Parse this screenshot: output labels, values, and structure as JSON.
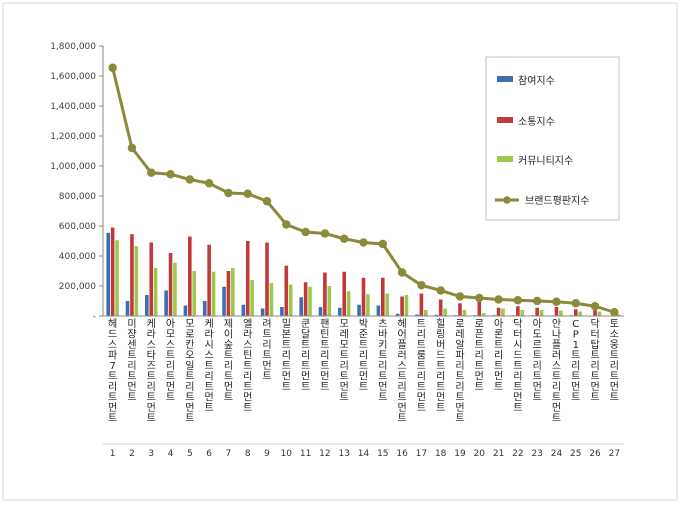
{
  "chart_data": {
    "type": "bar",
    "title": "",
    "xlabel": "",
    "ylabel": "",
    "ylim": [
      0,
      1800000
    ],
    "yticks": [
      "-",
      "200,000",
      "400,000",
      "600,000",
      "800,000",
      "1,000,000",
      "1,200,000",
      "1,400,000",
      "1,600,000",
      "1,800,000"
    ],
    "grid": false,
    "legend_position": "top-right",
    "ranks": [
      "1",
      "2",
      "3",
      "4",
      "5",
      "6",
      "7",
      "8",
      "9",
      "10",
      "11",
      "12",
      "13",
      "14",
      "15",
      "16",
      "17",
      "18",
      "19",
      "20",
      "21",
      "22",
      "23",
      "24",
      "25",
      "26",
      "27"
    ],
    "categories": [
      "헤드스파7트리트먼트",
      "미쟝센트리트먼트",
      "케라스타즈트리트먼트",
      "아모스트리트먼트",
      "모로칸오일트리트먼트",
      "케라시스트리트먼트",
      "제이숲트리트먼트",
      "엘라스틴트리트먼트",
      "려트리트먼트",
      "밀본트리트먼트",
      "쿤달트리트먼트",
      "팬틴트리트먼트",
      "모레모트리트먼트",
      "박준트리트먼트",
      "츠바키트리트먼트",
      "헤어플러스트리트먼트",
      "트리트룸트리트먼트",
      "힐링버드트리트먼트",
      "로레알파리트리트먼트",
      "로픈트리트먼트",
      "아론트리트먼트",
      "닥터시드트리트먼트",
      "아도르트리트먼트",
      "안나플러스트리트먼트",
      "CP1트리트먼트",
      "닥터탑트리트먼트",
      "토소웅트리트먼트"
    ],
    "series": [
      {
        "name": "참여지수",
        "type": "bar",
        "color": "#3c6fb0",
        "values": [
          555000,
          100000,
          140000,
          170000,
          70000,
          100000,
          195000,
          75000,
          50000,
          60000,
          125000,
          60000,
          55000,
          75000,
          70000,
          15000,
          10000,
          8000,
          5000,
          5000,
          5000,
          5000,
          5000,
          4000,
          5000,
          3000,
          3000
        ]
      },
      {
        "name": "소통지수",
        "type": "bar",
        "color": "#c0393b",
        "values": [
          590000,
          545000,
          490000,
          420000,
          530000,
          475000,
          300000,
          500000,
          490000,
          335000,
          225000,
          290000,
          295000,
          255000,
          255000,
          130000,
          150000,
          110000,
          85000,
          95000,
          55000,
          65000,
          55000,
          60000,
          45000,
          40000,
          15000
        ]
      },
      {
        "name": "커뮤니티지수",
        "type": "bar",
        "color": "#9cc84e",
        "values": [
          505000,
          465000,
          320000,
          355000,
          300000,
          295000,
          320000,
          240000,
          220000,
          210000,
          195000,
          200000,
          165000,
          145000,
          150000,
          140000,
          40000,
          50000,
          40000,
          20000,
          50000,
          40000,
          40000,
          35000,
          30000,
          30000,
          10000
        ]
      },
      {
        "name": "브랜드평판지수",
        "type": "line",
        "color": "#8a8a3a",
        "values": [
          1655000,
          1120000,
          955000,
          945000,
          910000,
          885000,
          820000,
          815000,
          765000,
          610000,
          560000,
          550000,
          515000,
          490000,
          480000,
          290000,
          205000,
          170000,
          130000,
          120000,
          110000,
          105000,
          100000,
          95000,
          85000,
          65000,
          25000
        ]
      }
    ]
  }
}
